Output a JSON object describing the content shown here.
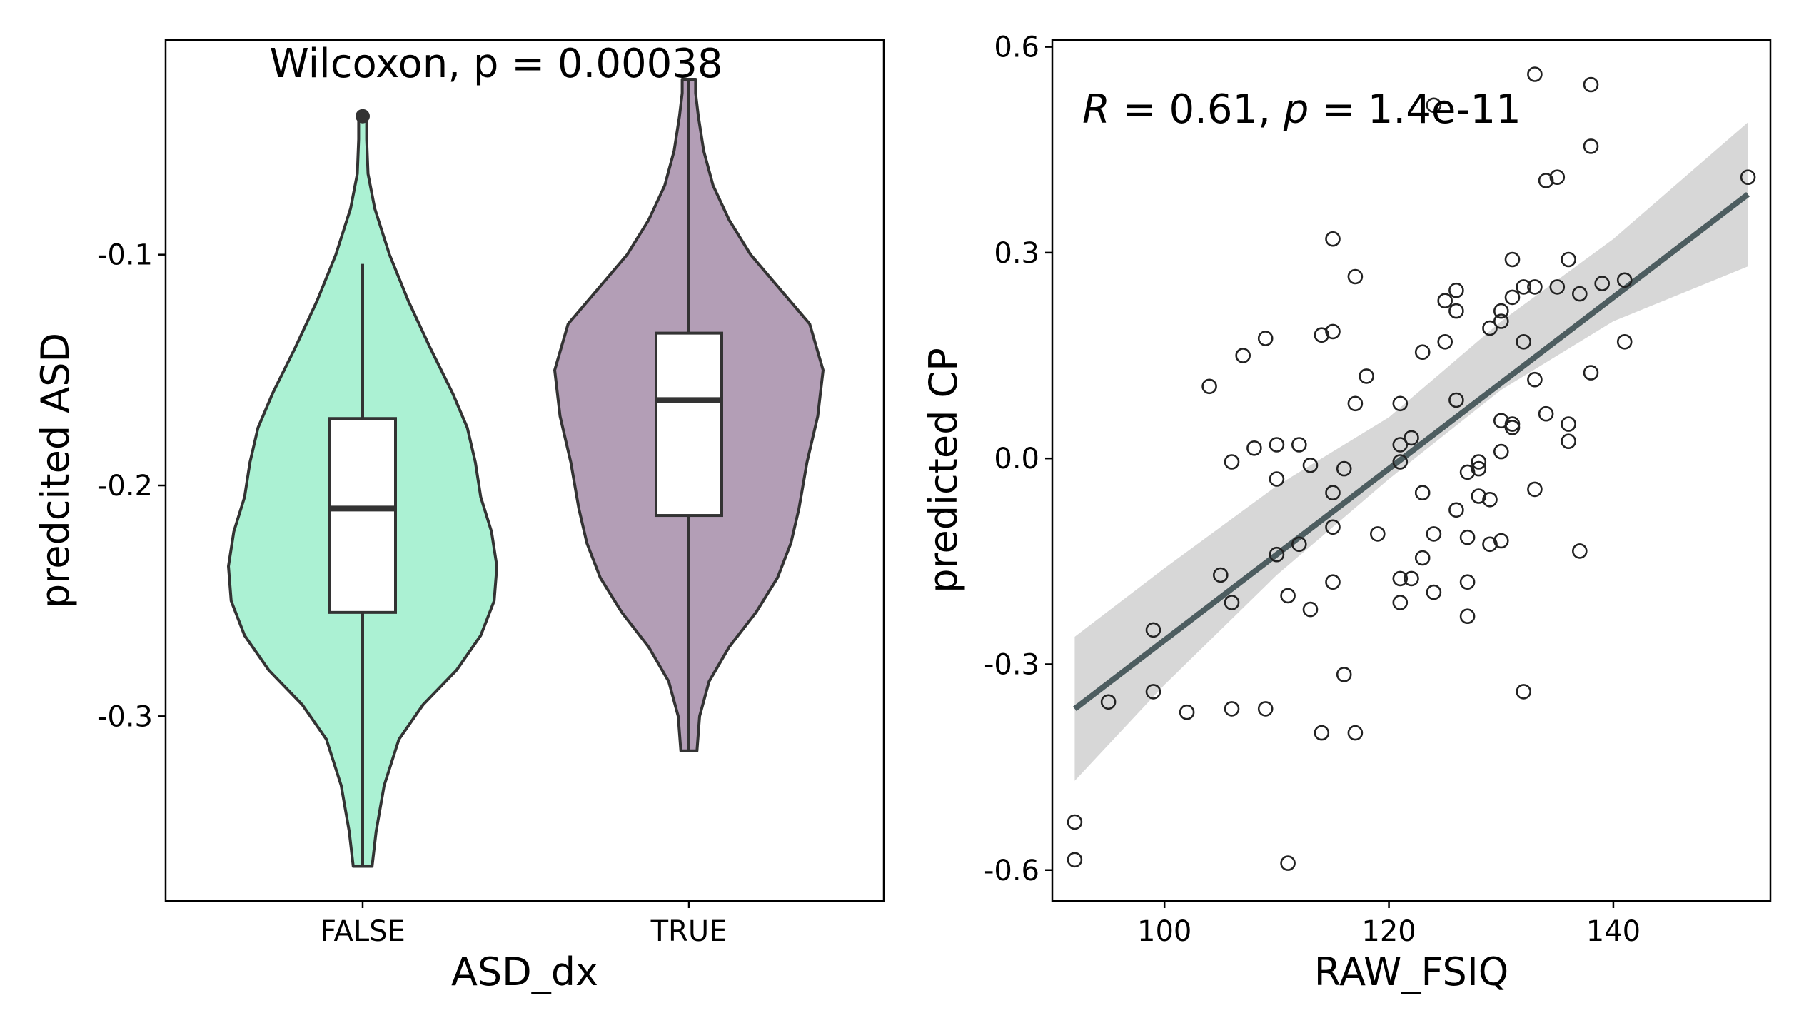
{
  "chart_data": [
    {
      "type": "violin",
      "title": "",
      "xlabel": "ASD_dx",
      "ylabel": "predcited ASD",
      "categories": [
        "FALSE",
        "TRUE"
      ],
      "fill_colors": [
        "#abf1d3",
        "#b39eb6"
      ],
      "ylim": [
        -0.38,
        -0.007
      ],
      "yticks": [
        -0.3,
        -0.2,
        -0.1
      ],
      "ytick_labels": [
        "-0.3",
        "-0.2",
        "-0.1"
      ],
      "annotation": "Wilcoxon, p = 0.00038",
      "grid": false,
      "groups": [
        {
          "name": "FALSE",
          "box": {
            "whisker_low": -0.365,
            "q1": -0.255,
            "median": -0.21,
            "q3": -0.171,
            "whisker_high": -0.104
          },
          "outliers": [
            -0.04
          ],
          "violin_max": -0.04,
          "violin_min": -0.365,
          "density": [
            [
              -0.365,
              0.07
            ],
            [
              -0.35,
              0.1
            ],
            [
              -0.33,
              0.16
            ],
            [
              -0.31,
              0.27
            ],
            [
              -0.295,
              0.45
            ],
            [
              -0.28,
              0.7
            ],
            [
              -0.265,
              0.88
            ],
            [
              -0.25,
              0.98
            ],
            [
              -0.235,
              1.0
            ],
            [
              -0.22,
              0.96
            ],
            [
              -0.205,
              0.88
            ],
            [
              -0.19,
              0.84
            ],
            [
              -0.175,
              0.78
            ],
            [
              -0.16,
              0.67
            ],
            [
              -0.14,
              0.5
            ],
            [
              -0.12,
              0.34
            ],
            [
              -0.1,
              0.2
            ],
            [
              -0.08,
              0.09
            ],
            [
              -0.065,
              0.04
            ],
            [
              -0.05,
              0.03
            ],
            [
              -0.04,
              0.03
            ]
          ]
        },
        {
          "name": "TRUE",
          "box": {
            "whisker_low": -0.315,
            "q1": -0.213,
            "median": -0.163,
            "q3": -0.134,
            "whisker_high": -0.024
          },
          "outliers": [],
          "violin_max": -0.024,
          "violin_min": -0.315,
          "density": [
            [
              -0.315,
              0.06
            ],
            [
              -0.3,
              0.08
            ],
            [
              -0.285,
              0.15
            ],
            [
              -0.27,
              0.3
            ],
            [
              -0.255,
              0.5
            ],
            [
              -0.24,
              0.66
            ],
            [
              -0.225,
              0.76
            ],
            [
              -0.21,
              0.82
            ],
            [
              -0.19,
              0.88
            ],
            [
              -0.17,
              0.96
            ],
            [
              -0.15,
              1.0
            ],
            [
              -0.13,
              0.9
            ],
            [
              -0.115,
              0.68
            ],
            [
              -0.1,
              0.46
            ],
            [
              -0.085,
              0.3
            ],
            [
              -0.07,
              0.18
            ],
            [
              -0.055,
              0.11
            ],
            [
              -0.04,
              0.07
            ],
            [
              -0.03,
              0.05
            ],
            [
              -0.024,
              0.05
            ]
          ]
        }
      ]
    },
    {
      "type": "scatter",
      "title": "",
      "xlabel": "RAW_FSIQ",
      "ylabel": "predicted CP",
      "xlim": [
        90,
        154
      ],
      "ylim": [
        -0.645,
        0.61
      ],
      "xticks": [
        100,
        120,
        140
      ],
      "xtick_labels": [
        "100",
        "120",
        "140"
      ],
      "yticks": [
        -0.6,
        -0.3,
        0.0,
        0.3,
        0.6
      ],
      "ytick_labels": [
        "-0.6",
        "-0.3",
        "0.0",
        "0.3",
        "0.6"
      ],
      "annotation_parts": {
        "r_symbol": "R",
        "r_value": " = 0.61, ",
        "p_symbol": "p",
        "p_value": " = 1.4e-11"
      },
      "grid": false,
      "regression": {
        "x0": 92,
        "y0": -0.365,
        "x1": 152,
        "y1": 0.385
      },
      "confidence_band": {
        "x": [
          92,
          100,
          110,
          120,
          130,
          140,
          152
        ],
        "lower": [
          -0.47,
          -0.33,
          -0.17,
          -0.03,
          0.1,
          0.2,
          0.28
        ],
        "upper": [
          -0.26,
          -0.16,
          -0.04,
          0.06,
          0.2,
          0.32,
          0.49
        ]
      },
      "line_color": "#4d5d60",
      "band_color": "#d7d7d7",
      "points": [
        [
          92,
          -0.53
        ],
        [
          92,
          -0.585
        ],
        [
          95,
          -0.355
        ],
        [
          99,
          -0.25
        ],
        [
          99,
          -0.34
        ],
        [
          102,
          -0.37
        ],
        [
          104,
          0.105
        ],
        [
          105,
          -0.17
        ],
        [
          106,
          -0.365
        ],
        [
          106,
          -0.21
        ],
        [
          106,
          -0.005
        ],
        [
          107,
          0.15
        ],
        [
          108,
          0.015
        ],
        [
          109,
          0.175
        ],
        [
          109,
          -0.365
        ],
        [
          110,
          0.02
        ],
        [
          110,
          -0.03
        ],
        [
          110,
          -0.14
        ],
        [
          111,
          -0.2
        ],
        [
          111,
          -0.59
        ],
        [
          112,
          0.02
        ],
        [
          112,
          -0.125
        ],
        [
          113,
          -0.01
        ],
        [
          113,
          -0.22
        ],
        [
          114,
          0.18
        ],
        [
          114,
          -0.4
        ],
        [
          115,
          0.32
        ],
        [
          115,
          0.185
        ],
        [
          115,
          -0.05
        ],
        [
          115,
          -0.1
        ],
        [
          115,
          -0.18
        ],
        [
          116,
          -0.015
        ],
        [
          116,
          -0.315
        ],
        [
          117,
          0.265
        ],
        [
          117,
          0.08
        ],
        [
          117,
          -0.4
        ],
        [
          118,
          0.12
        ],
        [
          119,
          -0.11
        ],
        [
          121,
          0.08
        ],
        [
          121,
          0.02
        ],
        [
          121,
          -0.005
        ],
        [
          121,
          -0.175
        ],
        [
          121,
          -0.21
        ],
        [
          122,
          0.03
        ],
        [
          122,
          -0.175
        ],
        [
          123,
          0.155
        ],
        [
          123,
          -0.145
        ],
        [
          123,
          -0.05
        ],
        [
          124,
          0.515
        ],
        [
          124,
          -0.11
        ],
        [
          124,
          -0.195
        ],
        [
          125,
          0.23
        ],
        [
          125,
          0.17
        ],
        [
          126,
          0.245
        ],
        [
          126,
          0.215
        ],
        [
          126,
          0.085
        ],
        [
          126,
          -0.075
        ],
        [
          127,
          -0.02
        ],
        [
          127,
          -0.115
        ],
        [
          127,
          -0.18
        ],
        [
          127,
          -0.23
        ],
        [
          128,
          -0.005
        ],
        [
          128,
          -0.015
        ],
        [
          128,
          -0.055
        ],
        [
          129,
          0.19
        ],
        [
          129,
          -0.06
        ],
        [
          129,
          -0.125
        ],
        [
          130,
          0.215
        ],
        [
          130,
          0.2
        ],
        [
          130,
          0.055
        ],
        [
          130,
          0.01
        ],
        [
          130,
          -0.12
        ],
        [
          131,
          0.29
        ],
        [
          131,
          0.235
        ],
        [
          131,
          0.05
        ],
        [
          131,
          0.045
        ],
        [
          132,
          0.25
        ],
        [
          132,
          0.17
        ],
        [
          132,
          -0.34
        ],
        [
          133,
          0.56
        ],
        [
          133,
          0.25
        ],
        [
          133,
          0.115
        ],
        [
          133,
          -0.045
        ],
        [
          134,
          0.405
        ],
        [
          134,
          0.065
        ],
        [
          135,
          0.41
        ],
        [
          135,
          0.25
        ],
        [
          136,
          0.29
        ],
        [
          136,
          0.05
        ],
        [
          136,
          0.025
        ],
        [
          137,
          0.24
        ],
        [
          137,
          -0.135
        ],
        [
          138,
          0.545
        ],
        [
          138,
          0.455
        ],
        [
          138,
          0.125
        ],
        [
          139,
          0.255
        ],
        [
          141,
          0.26
        ],
        [
          141,
          0.17
        ],
        [
          152,
          0.41
        ]
      ]
    }
  ]
}
